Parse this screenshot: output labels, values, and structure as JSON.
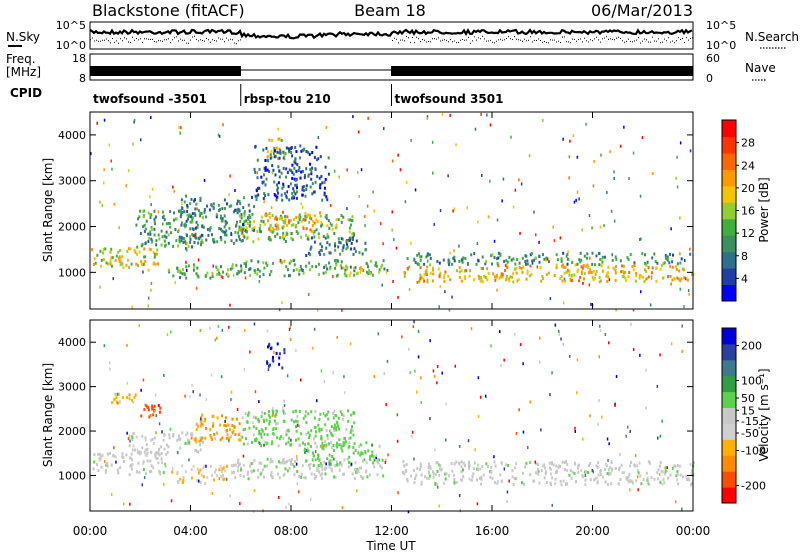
{
  "header": {
    "station": "Blackstone (fitACF)",
    "beam": "Beam 18",
    "date": "06/Mar/2013"
  },
  "side_labels": {
    "nsky": "N.Sky",
    "freq_line1": "Freq.",
    "freq_line2": "[MHz]",
    "cpid": "CPID",
    "nsearch": "N.Search",
    "nave": "Nave"
  },
  "noise_panel": {
    "left_ticks": [
      "10^5",
      "10^0"
    ],
    "right_ticks": [
      "10^5",
      "10^0"
    ]
  },
  "freq_panel": {
    "left_ticks": [
      "18",
      "8"
    ],
    "right_ticks": [
      "60",
      "0"
    ]
  },
  "cpid_segments": [
    {
      "label": "twofsound -3501",
      "start": 0,
      "end": 6
    },
    {
      "label": "rbsp-tou 210",
      "start": 6,
      "end": 12
    },
    {
      "label": "twofsound 3501",
      "start": 12,
      "end": 24
    }
  ],
  "colors": {
    "power": [
      "#0000ff",
      "#1f3fa8",
      "#2e6f8c",
      "#3d8f5c",
      "#3fae3f",
      "#8fcf2f",
      "#f5c400",
      "#ff9900",
      "#ff6600",
      "#ff3300",
      "#ff0000"
    ],
    "velocity": [
      "#ff0000",
      "#ff4d00",
      "#ff8c00",
      "#ffb000",
      "#d0d0d0",
      "#c8c8c8",
      "#5ad34a",
      "#2f9f3f",
      "#3c7a8c",
      "#2a3fa0",
      "#0000d8"
    ]
  },
  "chart_data": [
    {
      "type": "heatmap",
      "name": "power",
      "xlabel": "Time UT",
      "ylabel": "Slant Range [km]",
      "xlim": [
        0,
        24
      ],
      "ylim": [
        200,
        4500
      ],
      "x_ticks": [
        "00:00",
        "04:00",
        "08:00",
        "12:00",
        "16:00",
        "20:00",
        "00:00"
      ],
      "y_ticks": [
        1000,
        2000,
        3000,
        4000
      ],
      "colorbar": {
        "label": "Power [dB]",
        "ticks": [
          4,
          8,
          12,
          16,
          20,
          24,
          28
        ],
        "range": [
          0,
          32
        ]
      },
      "regions": [
        {
          "t0": 0.0,
          "t1": 2.8,
          "r0": 1050,
          "r1": 1550,
          "value": 18
        },
        {
          "t0": 1.8,
          "t1": 4.5,
          "r0": 1550,
          "r1": 2400,
          "value": 11
        },
        {
          "t0": 3.0,
          "t1": 5.5,
          "r0": 900,
          "r1": 1200,
          "value": 13
        },
        {
          "t0": 3.5,
          "t1": 6.5,
          "r0": 1650,
          "r1": 2700,
          "value": 9
        },
        {
          "t0": 5.8,
          "t1": 10.5,
          "r0": 1700,
          "r1": 2300,
          "value": 14
        },
        {
          "t0": 6.8,
          "t1": 9.2,
          "r0": 1950,
          "r1": 2350,
          "value": 21
        },
        {
          "t0": 5.5,
          "t1": 11.8,
          "r0": 950,
          "r1": 1300,
          "value": 12
        },
        {
          "t0": 8.5,
          "t1": 11.0,
          "r0": 1400,
          "r1": 1800,
          "value": 8
        },
        {
          "t0": 9.8,
          "t1": 11.2,
          "r0": 950,
          "r1": 1150,
          "value": 16
        },
        {
          "t0": 7.0,
          "t1": 7.8,
          "r0": 3500,
          "r1": 3950,
          "value": 18
        },
        {
          "t0": 6.5,
          "t1": 9.5,
          "r0": 2600,
          "r1": 3800,
          "value": 6
        },
        {
          "t0": 12.4,
          "t1": 24.0,
          "r0": 820,
          "r1": 1200,
          "value": 20
        },
        {
          "t0": 12.6,
          "t1": 24.0,
          "r0": 1200,
          "r1": 1450,
          "value": 10
        }
      ]
    },
    {
      "type": "heatmap",
      "name": "velocity",
      "xlabel": "Time UT",
      "ylabel": "Slant Range [km]",
      "xlim": [
        0,
        24
      ],
      "ylim": [
        200,
        4500
      ],
      "x_ticks": [
        "00:00",
        "04:00",
        "08:00",
        "12:00",
        "16:00",
        "20:00",
        "00:00"
      ],
      "y_ticks": [
        1000,
        2000,
        3000,
        4000
      ],
      "colorbar": {
        "label": "Velocity [m s⁻¹]",
        "ticks": [
          -200,
          -100,
          -50,
          -15,
          15,
          50,
          100,
          200
        ],
        "range": [
          -250,
          250
        ]
      },
      "regions": [
        {
          "t0": 0.0,
          "t1": 3.0,
          "r0": 1050,
          "r1": 1550,
          "value": 0
        },
        {
          "t0": 1.5,
          "t1": 4.5,
          "r0": 1500,
          "r1": 2000,
          "value": -5
        },
        {
          "t0": 2.0,
          "t1": 2.8,
          "r0": 2350,
          "r1": 2650,
          "value": -180
        },
        {
          "t0": 0.8,
          "t1": 1.8,
          "r0": 2650,
          "r1": 2900,
          "value": -90
        },
        {
          "t0": 3.0,
          "t1": 5.5,
          "r0": 850,
          "r1": 1250,
          "value": -60
        },
        {
          "t0": 4.0,
          "t1": 6.0,
          "r0": 1800,
          "r1": 2400,
          "value": -110
        },
        {
          "t0": 6.0,
          "t1": 10.5,
          "r0": 1700,
          "r1": 2500,
          "value": 40
        },
        {
          "t0": 5.5,
          "t1": 11.8,
          "r0": 950,
          "r1": 1400,
          "value": 5
        },
        {
          "t0": 8.5,
          "t1": 11.5,
          "r0": 1250,
          "r1": 1800,
          "value": 45
        },
        {
          "t0": 7.0,
          "t1": 7.8,
          "r0": 3450,
          "r1": 4000,
          "value": 200
        },
        {
          "t0": 12.4,
          "t1": 24.0,
          "r0": 820,
          "r1": 1350,
          "value": 0
        }
      ]
    }
  ]
}
